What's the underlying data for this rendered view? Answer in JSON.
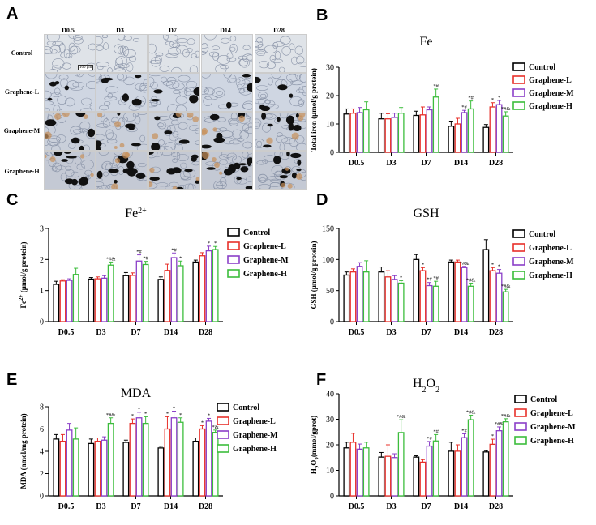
{
  "panel_labels": [
    "A",
    "B",
    "C",
    "D",
    "E",
    "F"
  ],
  "micrograph_panel": {
    "columns": [
      "D0.5",
      "D3",
      "D7",
      "D14",
      "D28"
    ],
    "rows": [
      "Control",
      "Graphene-L",
      "Graphene-M",
      "Graphene-H"
    ],
    "scale_bar": "100 μm"
  },
  "colors": {
    "Control": "#000000",
    "Graphene-L": "#e8302a",
    "Graphene-M": "#8b3fc8",
    "Graphene-H": "#3cbd3c"
  },
  "chart_data": [
    {
      "id": "B",
      "type": "bar",
      "title": "Fe",
      "ylabel": "Total iron (μmol/g protein)",
      "categories": [
        "D0.5",
        "D3",
        "D7",
        "D14",
        "D28"
      ],
      "ylim": [
        0,
        30
      ],
      "yticks": [
        0,
        10,
        20,
        30
      ],
      "legend": [
        "Control",
        "Graphene-L",
        "Graphene-M",
        "Graphene-H"
      ],
      "series": [
        {
          "name": "Control",
          "values": [
            13.5,
            11.8,
            13.0,
            9.2,
            8.8
          ],
          "errors": [
            1.8,
            2.0,
            1.5,
            1.8,
            1.0
          ],
          "annotations": [
            "",
            "",
            "",
            "",
            ""
          ]
        },
        {
          "name": "Graphene-L",
          "values": [
            13.8,
            11.8,
            13.2,
            10.0,
            16.0
          ],
          "errors": [
            1.5,
            1.8,
            2.8,
            2.0,
            1.5
          ],
          "annotations": [
            "",
            "",
            "",
            "",
            "*"
          ]
        },
        {
          "name": "Graphene-M",
          "values": [
            14.0,
            12.3,
            15.0,
            14.0,
            16.8
          ],
          "errors": [
            1.8,
            1.5,
            1.0,
            0.8,
            1.5
          ],
          "annotations": [
            "",
            "",
            "",
            "*#",
            "*"
          ]
        },
        {
          "name": "Graphene-H",
          "values": [
            15.0,
            13.8,
            19.5,
            15.3,
            12.8
          ],
          "errors": [
            2.8,
            2.0,
            2.8,
            2.8,
            1.5
          ],
          "annotations": [
            "",
            "",
            "*#",
            "*#",
            "*#&"
          ]
        }
      ]
    },
    {
      "id": "C",
      "type": "bar",
      "title": "Fe2+",
      "ylabel": "Fe2+ (μmol/g protein)",
      "categories": [
        "D0.5",
        "D3",
        "D7",
        "D14",
        "D28"
      ],
      "ylim": [
        0,
        3
      ],
      "yticks": [
        0,
        1,
        2,
        3
      ],
      "legend": [
        "Control",
        "Graphene-L",
        "Graphene-M",
        "Graphene-H"
      ],
      "series": [
        {
          "name": "Control",
          "values": [
            1.2,
            1.37,
            1.48,
            1.36,
            1.92
          ],
          "errors": [
            0.1,
            0.05,
            0.1,
            0.08,
            0.06
          ],
          "annotations": [
            "",
            "",
            "",
            "",
            ""
          ]
        },
        {
          "name": "Graphene-L",
          "values": [
            1.31,
            1.38,
            1.49,
            1.65,
            2.12
          ],
          "errors": [
            0.04,
            0.06,
            0.08,
            0.2,
            0.1
          ],
          "annotations": [
            "",
            "",
            "",
            "",
            ""
          ]
        },
        {
          "name": "Graphene-M",
          "values": [
            1.33,
            1.4,
            1.95,
            2.06,
            2.28
          ],
          "errors": [
            0.05,
            0.08,
            0.2,
            0.15,
            0.15
          ],
          "annotations": [
            "",
            "",
            "*#",
            "*#",
            "*"
          ]
        },
        {
          "name": "Graphene-H",
          "values": [
            1.52,
            1.82,
            1.84,
            1.8,
            2.32
          ],
          "errors": [
            0.2,
            0.1,
            0.1,
            0.15,
            0.1
          ],
          "annotations": [
            "",
            "*#&",
            "*#",
            "*",
            "*"
          ]
        }
      ]
    },
    {
      "id": "D",
      "type": "bar",
      "title": "GSH",
      "ylabel": "GSH (μmol/g protein)",
      "categories": [
        "D0.5",
        "D3",
        "D7",
        "D14",
        "D28"
      ],
      "ylim": [
        0,
        150
      ],
      "yticks": [
        0,
        50,
        100,
        150
      ],
      "legend": [
        "Control",
        "Graphene-L",
        "Graphene-M",
        "Graphene-H"
      ],
      "series": [
        {
          "name": "Control",
          "values": [
            75,
            80,
            100,
            96,
            116
          ],
          "errors": [
            5,
            8,
            8,
            3,
            16
          ],
          "annotations": [
            "",
            "",
            "",
            "",
            ""
          ]
        },
        {
          "name": "Graphene-L",
          "values": [
            80,
            72,
            82,
            96,
            82
          ],
          "errors": [
            5,
            10,
            5,
            3,
            5
          ],
          "annotations": [
            "",
            "",
            "*",
            "",
            "*"
          ]
        },
        {
          "name": "Graphene-M",
          "values": [
            89,
            68,
            58,
            87,
            78
          ],
          "errors": [
            6,
            6,
            5,
            2,
            6
          ],
          "annotations": [
            "",
            "",
            "*#",
            "*#&",
            "*"
          ]
        },
        {
          "name": "Graphene-H",
          "values": [
            80,
            62,
            57,
            57,
            48
          ],
          "errors": [
            18,
            4,
            8,
            5,
            4
          ],
          "annotations": [
            "",
            "*",
            "*#",
            "*#&",
            "*#&"
          ]
        }
      ]
    },
    {
      "id": "E",
      "type": "bar",
      "title": "MDA",
      "ylabel": "MDA (nmol/mg protein)",
      "categories": [
        "D0.5",
        "D3",
        "D7",
        "D14",
        "D28"
      ],
      "ylim": [
        0,
        8
      ],
      "yticks": [
        0,
        2,
        4,
        6,
        8
      ],
      "legend": [
        "Control",
        "Graphene-L",
        "Graphene-M",
        "Graphene-H"
      ],
      "series": [
        {
          "name": "Control",
          "values": [
            5.1,
            4.7,
            4.8,
            4.3,
            4.9
          ],
          "errors": [
            0.4,
            0.4,
            0.2,
            0.15,
            0.3
          ],
          "annotations": [
            "",
            "",
            "",
            "",
            ""
          ]
        },
        {
          "name": "Graphene-L",
          "values": [
            4.9,
            4.9,
            6.5,
            6.0,
            6.0
          ],
          "errors": [
            0.6,
            0.3,
            0.4,
            1.1,
            0.3
          ],
          "annotations": [
            "",
            "",
            "*",
            "*",
            "*"
          ]
        },
        {
          "name": "Graphene-M",
          "values": [
            5.9,
            5.0,
            7.0,
            7.0,
            6.7
          ],
          "errors": [
            0.6,
            0.3,
            0.5,
            0.6,
            0.25
          ],
          "annotations": [
            "",
            "",
            "*",
            "*",
            "*"
          ]
        },
        {
          "name": "Graphene-H",
          "values": [
            5.1,
            6.5,
            6.5,
            6.6,
            5.7
          ],
          "errors": [
            1.0,
            0.5,
            0.6,
            0.4,
            0.2
          ],
          "annotations": [
            "",
            "*#&",
            "*",
            "*",
            "*&"
          ]
        }
      ]
    },
    {
      "id": "F",
      "type": "bar",
      "title": "H2O2",
      "ylabel": "H2O2(mmol/gprot)",
      "categories": [
        "D0.5",
        "D3",
        "D7",
        "D14",
        "D28"
      ],
      "ylim": [
        0,
        40
      ],
      "yticks": [
        0,
        10,
        20,
        30,
        40
      ],
      "legend": [
        "Control",
        "Graphene-L",
        "Graphene-M",
        "Graphene-H"
      ],
      "series": [
        {
          "name": "Control",
          "values": [
            18.8,
            15.2,
            15.2,
            17.5,
            17.2
          ],
          "errors": [
            2.2,
            1.8,
            0.5,
            3.5,
            0.5
          ],
          "annotations": [
            "",
            "",
            "",
            "",
            ""
          ]
        },
        {
          "name": "Graphene-L",
          "values": [
            21.0,
            15.5,
            13.2,
            17.5,
            20.2
          ],
          "errors": [
            3.5,
            4.5,
            1.0,
            2.5,
            2.0
          ],
          "annotations": [
            "",
            "",
            "",
            "",
            "*"
          ]
        },
        {
          "name": "Graphene-M",
          "values": [
            18.3,
            15.0,
            19.5,
            22.8,
            25.5
          ],
          "errors": [
            2.0,
            1.5,
            1.8,
            1.5,
            1.5
          ],
          "annotations": [
            "",
            "",
            "*#",
            "*#",
            "*#&"
          ]
        },
        {
          "name": "Graphene-H",
          "values": [
            18.8,
            24.8,
            21.5,
            29.8,
            29.0
          ],
          "errors": [
            2.2,
            5.0,
            2.5,
            1.8,
            1.2
          ],
          "annotations": [
            "",
            "*#&",
            "*#",
            "*#&",
            "*#&"
          ]
        }
      ]
    }
  ]
}
